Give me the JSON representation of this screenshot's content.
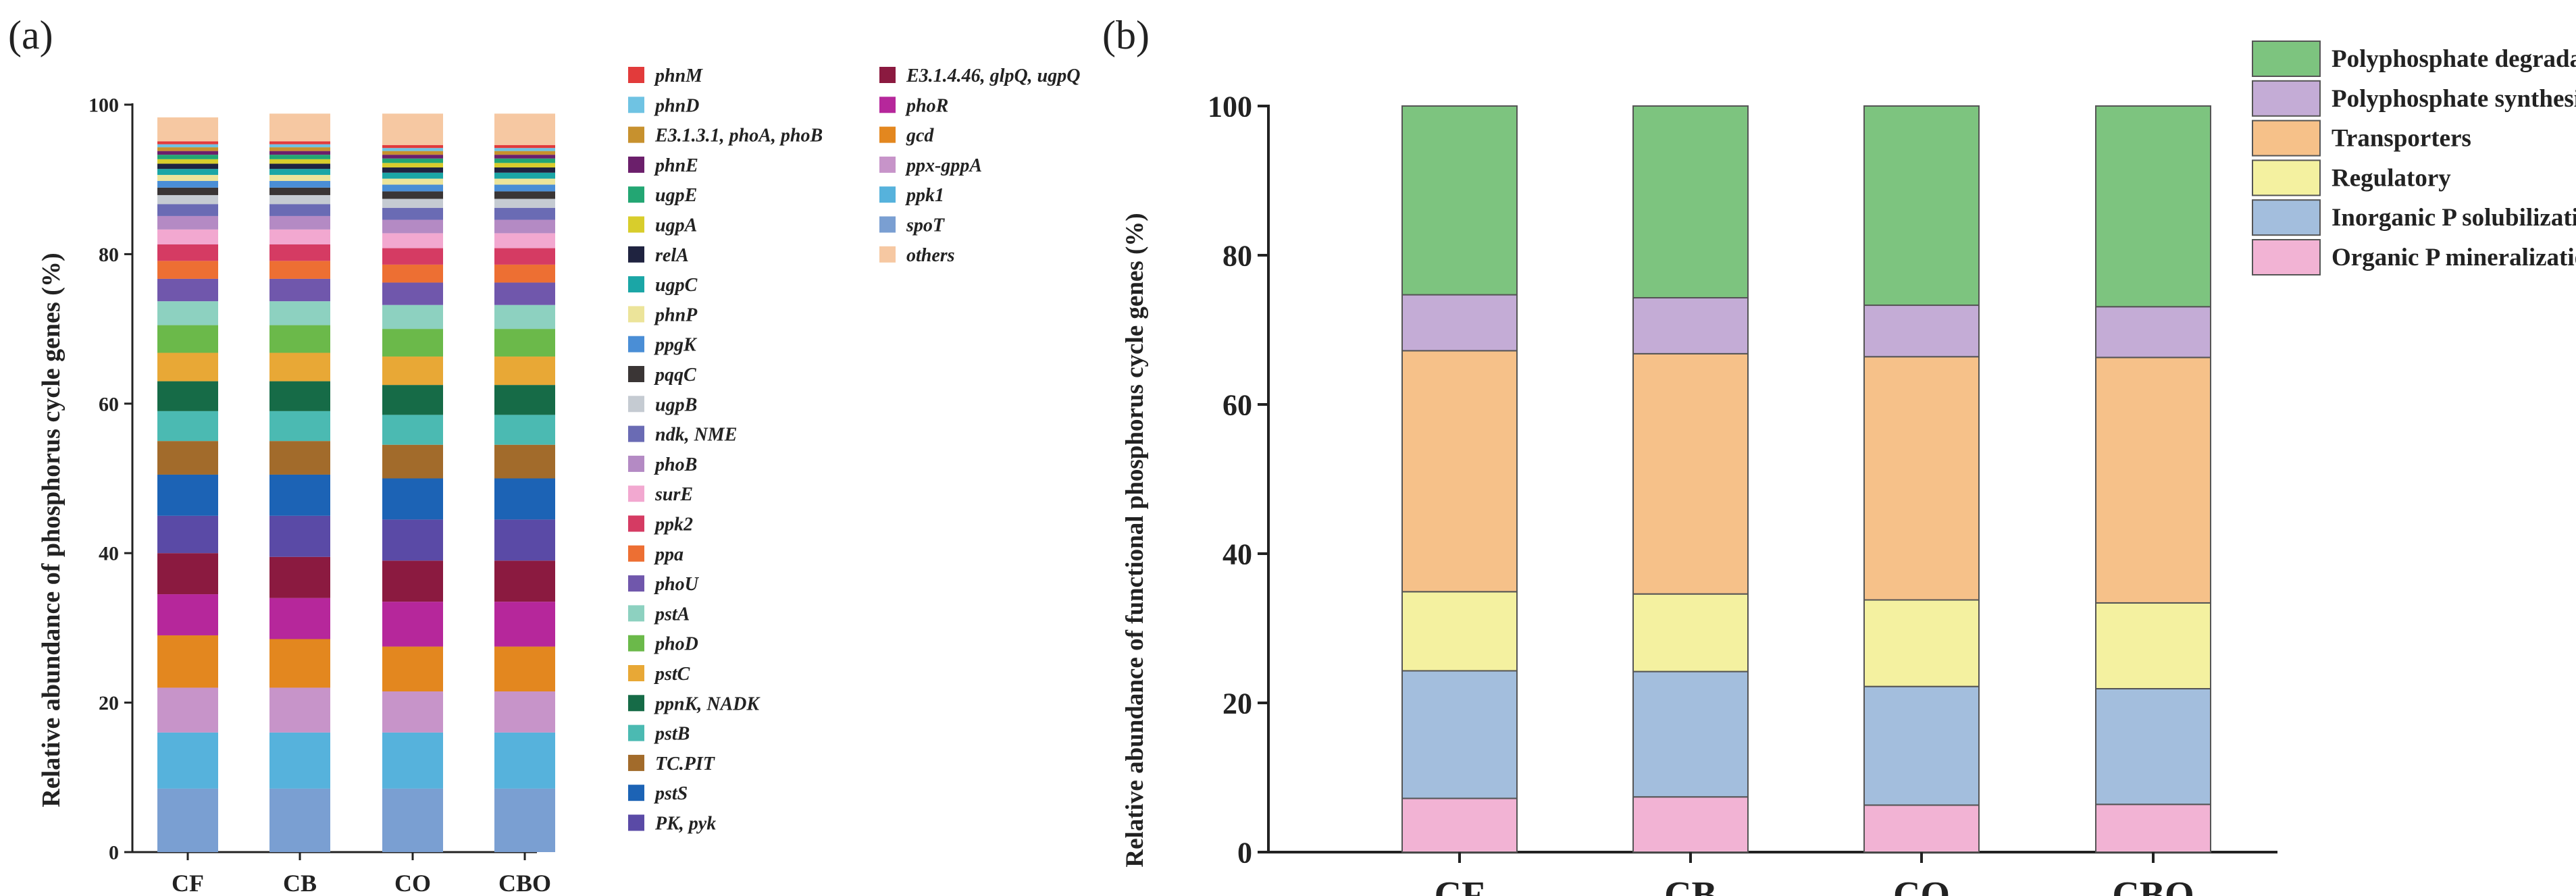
{
  "chart_data": [
    {
      "panel": "(a)",
      "type": "bar",
      "stacked": true,
      "ylabel": "Relative abundance of phosphorus cycle genes (%)",
      "ylim": [
        0,
        100
      ],
      "yticks": [
        "0",
        "20",
        "40",
        "60",
        "80",
        "100"
      ],
      "categories": [
        "CF",
        "CB",
        "CO",
        "CBO"
      ],
      "series": [
        {
          "name": "spoT",
          "color": "#7a9fd2",
          "values": [
            8.5,
            8.5,
            8.5,
            8.5
          ]
        },
        {
          "name": "ppk1",
          "color": "#56b2dc",
          "values": [
            7.5,
            7.5,
            7.5,
            7.5
          ]
        },
        {
          "name": "ppx-gppA",
          "color": "#c794c9",
          "values": [
            6.0,
            6.0,
            5.5,
            5.5
          ]
        },
        {
          "name": "gcd",
          "color": "#e3871f",
          "values": [
            7.0,
            6.5,
            6.0,
            6.0
          ]
        },
        {
          "name": "phoR",
          "color": "#b6279b",
          "values": [
            5.5,
            5.5,
            6.0,
            6.0
          ]
        },
        {
          "name": "E3.1.4.46, glpQ, ugpQ",
          "color": "#8b1a40",
          "values": [
            5.5,
            5.5,
            5.5,
            5.5
          ]
        },
        {
          "name": "PK, pyk",
          "color": "#5a4aa6",
          "values": [
            5.0,
            5.5,
            5.5,
            5.5
          ]
        },
        {
          "name": "pstS",
          "color": "#1c63b5",
          "values": [
            5.5,
            5.5,
            5.5,
            5.5
          ]
        },
        {
          "name": "TC.PIT",
          "color": "#a26b2b",
          "values": [
            4.5,
            4.5,
            4.5,
            4.5
          ]
        },
        {
          "name": "pstB",
          "color": "#4bbab2",
          "values": [
            4.0,
            4.0,
            4.0,
            4.0
          ]
        },
        {
          "name": "ppnK, NADK",
          "color": "#166b47",
          "values": [
            4.0,
            4.0,
            4.0,
            4.0
          ]
        },
        {
          "name": "pstC",
          "color": "#e8a836",
          "values": [
            3.8,
            3.8,
            3.8,
            3.8
          ]
        },
        {
          "name": "phoD",
          "color": "#6bb94a",
          "values": [
            3.7,
            3.7,
            3.7,
            3.7
          ]
        },
        {
          "name": "pstA",
          "color": "#8dd1c0",
          "values": [
            3.2,
            3.2,
            3.2,
            3.2
          ]
        },
        {
          "name": "phoU",
          "color": "#7057ac",
          "values": [
            3.0,
            3.0,
            3.0,
            3.0
          ]
        },
        {
          "name": "ppa",
          "color": "#ed6f33",
          "values": [
            2.4,
            2.4,
            2.4,
            2.4
          ]
        },
        {
          "name": "ppk2",
          "color": "#d53b63",
          "values": [
            2.2,
            2.2,
            2.2,
            2.2
          ]
        },
        {
          "name": "surE",
          "color": "#f2a8d0",
          "values": [
            2.0,
            2.0,
            2.0,
            2.0
          ]
        },
        {
          "name": "phoB",
          "color": "#b48ac4",
          "values": [
            1.8,
            1.8,
            1.8,
            1.8
          ]
        },
        {
          "name": "ndk, NME",
          "color": "#6a6bb4",
          "values": [
            1.6,
            1.6,
            1.6,
            1.6
          ]
        },
        {
          "name": "ugpB",
          "color": "#c5cbd2",
          "values": [
            1.2,
            1.2,
            1.2,
            1.2
          ]
        },
        {
          "name": "pqqC",
          "color": "#3a3535",
          "values": [
            1.0,
            1.0,
            1.0,
            1.0
          ]
        },
        {
          "name": "ppgK",
          "color": "#4a8ed6",
          "values": [
            0.9,
            0.9,
            0.9,
            0.9
          ]
        },
        {
          "name": "phnP",
          "color": "#ece49a",
          "values": [
            0.8,
            0.8,
            0.8,
            0.8
          ]
        },
        {
          "name": "ugpC",
          "color": "#1ba6a6",
          "values": [
            0.8,
            0.8,
            0.8,
            0.8
          ]
        },
        {
          "name": "relA",
          "color": "#1f2340",
          "values": [
            0.7,
            0.7,
            0.7,
            0.7
          ]
        },
        {
          "name": "ugpA",
          "color": "#d8cd2c",
          "values": [
            0.6,
            0.6,
            0.6,
            0.6
          ]
        },
        {
          "name": "ugpE",
          "color": "#23a673",
          "values": [
            0.6,
            0.6,
            0.6,
            0.6
          ]
        },
        {
          "name": "phnE",
          "color": "#6b1f6b",
          "values": [
            0.5,
            0.5,
            0.5,
            0.5
          ]
        },
        {
          "name": "E3.1.3.1, phoA, phoB",
          "color": "#c7912e",
          "values": [
            0.5,
            0.5,
            0.5,
            0.5
          ]
        },
        {
          "name": "phnD",
          "color": "#6fc3e3",
          "values": [
            0.4,
            0.4,
            0.4,
            0.4
          ]
        },
        {
          "name": "phnM",
          "color": "#e23b3b",
          "values": [
            0.4,
            0.4,
            0.4,
            0.4
          ]
        },
        {
          "name": "others",
          "color": "#f6c8a2",
          "values": [
            3.2,
            3.7,
            4.2,
            4.2
          ]
        }
      ],
      "legend_columns": [
        [
          "phnM",
          "phnD",
          "E3.1.3.1, phoA, phoB",
          "phnE",
          "ugpE",
          "ugpA",
          "relA",
          "ugpC",
          "phnP",
          "ppgK",
          "pqqC",
          "ugpB",
          "ndk, NME",
          "phoB",
          "surE",
          "ppk2",
          "ppa",
          "phoU",
          "pstA",
          "phoD",
          "pstC",
          "ppnK, NADK",
          "pstB",
          "TC.PIT",
          "pstS",
          "PK, pyk"
        ],
        [
          "E3.1.4.46, glpQ, ugpQ",
          "phoR",
          "gcd",
          "ppx-gppA",
          "ppk1",
          "spoT",
          "others"
        ]
      ]
    },
    {
      "panel": "(b)",
      "type": "bar",
      "stacked": true,
      "ylabel": "Relative abundance of functional phosphorus cycle genes (%)",
      "ylim": [
        0,
        100
      ],
      "yticks": [
        "0",
        "20",
        "40",
        "60",
        "80",
        "100"
      ],
      "categories": [
        "CF",
        "CB",
        "CO",
        "CBO"
      ],
      "series": [
        {
          "name": "Organic P mineralization",
          "color": "#f2b3d4",
          "values": [
            7.2,
            7.4,
            6.3,
            6.4
          ]
        },
        {
          "name": "Inorganic P solubilization",
          "color": "#a3bedd",
          "values": [
            17.1,
            16.8,
            15.9,
            15.5
          ]
        },
        {
          "name": "Regulatory",
          "color": "#f4f1a0",
          "values": [
            10.6,
            10.4,
            11.6,
            11.5
          ]
        },
        {
          "name": "Transporters",
          "color": "#f6c189",
          "values": [
            32.3,
            32.2,
            32.6,
            32.9
          ]
        },
        {
          "name": "Polyphosphate synthesis",
          "color": "#c4acd6",
          "values": [
            7.5,
            7.5,
            6.9,
            6.8
          ]
        },
        {
          "name": "Polyphosphate degradation",
          "color": "#7dc47f",
          "values": [
            25.3,
            25.7,
            26.7,
            26.9
          ]
        }
      ],
      "legend_order": [
        "Polyphosphate degradation",
        "Polyphosphate synthesis",
        "Transporters",
        "Regulatory",
        "Inorganic P solubilization",
        "Organic P mineralization"
      ]
    }
  ]
}
